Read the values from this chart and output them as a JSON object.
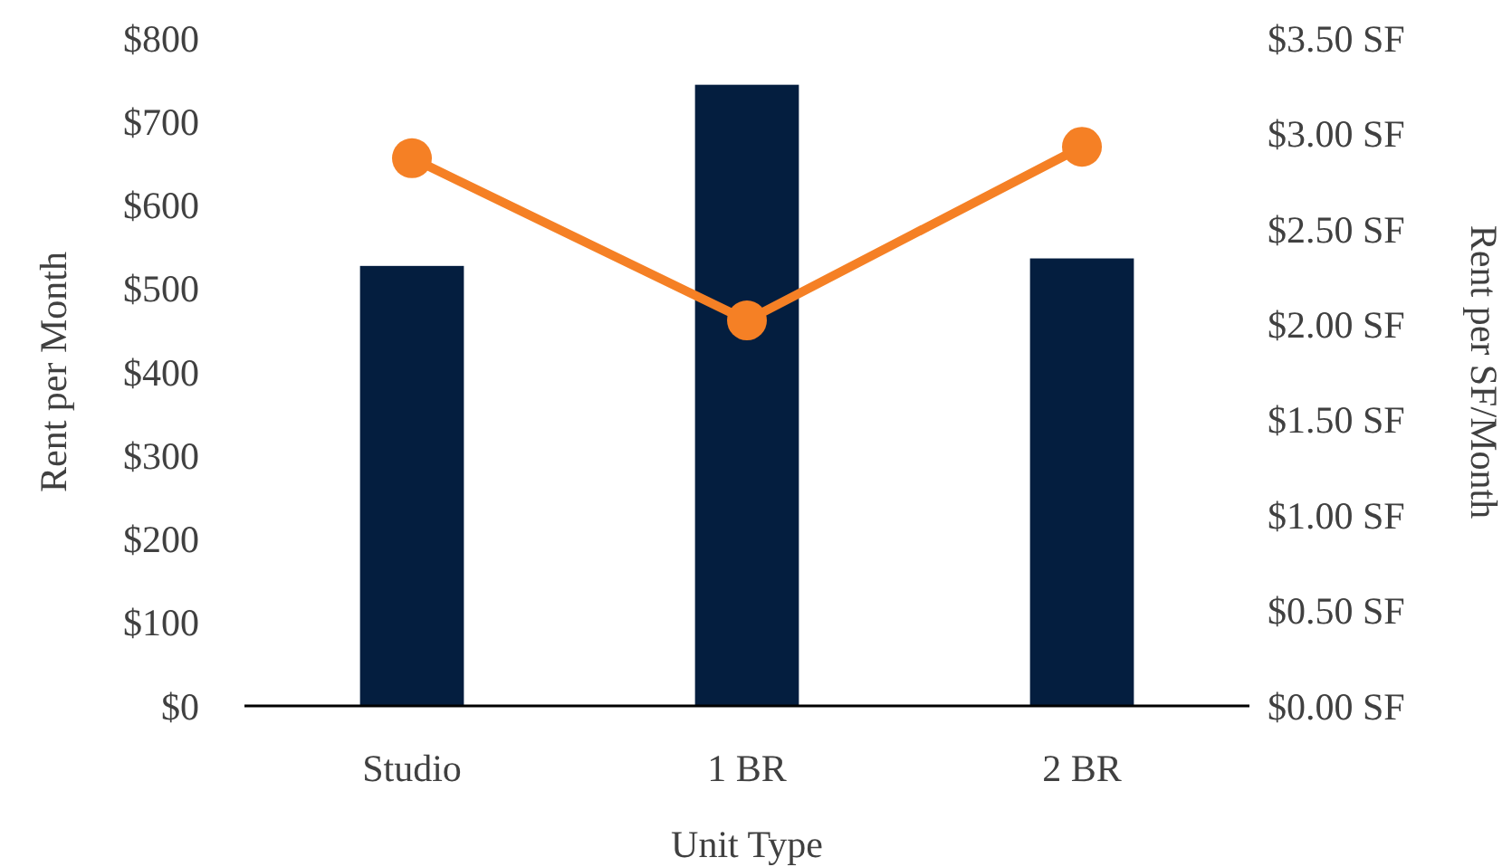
{
  "chart_data": {
    "type": "bar",
    "xlabel": "Unit Type",
    "ylabel": "Rent per Month",
    "y2label": "Rent per SF/Month",
    "categories": [
      "Studio",
      "1 BR",
      "2 BR"
    ],
    "series": [
      {
        "color": "#041e3f",
        "values": [
          527,
          744,
          536
        ]
      },
      {
        "type": "line",
        "axis": "y2",
        "color": "#f58025",
        "marker": "circle",
        "values": [
          2.87,
          2.02,
          2.93
        ]
      }
    ],
    "ylim": [
      0,
      800
    ],
    "yticks": [
      {
        "value": 0,
        "label": "$0"
      },
      {
        "value": 100,
        "label": "$100"
      },
      {
        "value": 200,
        "label": "$200"
      },
      {
        "value": 300,
        "label": "$300"
      },
      {
        "value": 400,
        "label": "$400"
      },
      {
        "value": 500,
        "label": "$500"
      },
      {
        "value": 600,
        "label": "$600"
      },
      {
        "value": 700,
        "label": "$700"
      },
      {
        "value": 800,
        "label": "$800"
      }
    ],
    "y2lim": [
      0,
      3.5
    ],
    "y2ticks": [
      {
        "value": 0,
        "label": "$0.00 SF"
      },
      {
        "value": 0.5,
        "label": "$0.50 SF"
      },
      {
        "value": 1,
        "label": "$1.00 SF"
      },
      {
        "value": 1.5,
        "label": "$1.50 SF"
      },
      {
        "value": 2,
        "label": "$2.00 SF"
      },
      {
        "value": 2.5,
        "label": "$2.50 SF"
      },
      {
        "value": 3,
        "label": "$3.00 SF"
      },
      {
        "value": 3.5,
        "label": "$3.50 SF"
      }
    ],
    "grid": false
  }
}
